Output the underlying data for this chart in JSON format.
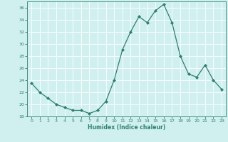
{
  "x": [
    0,
    1,
    2,
    3,
    4,
    5,
    6,
    7,
    8,
    9,
    10,
    11,
    12,
    13,
    14,
    15,
    16,
    17,
    18,
    19,
    20,
    21,
    22,
    23
  ],
  "y": [
    23.5,
    22,
    21,
    20,
    19.5,
    19,
    19,
    18.5,
    19,
    20.5,
    24,
    29,
    32,
    34.5,
    33.5,
    35.5,
    36.5,
    33.5,
    28,
    25,
    24.5,
    26.5,
    24,
    22.5
  ],
  "line_color": "#2d7f6e",
  "marker": "D",
  "marker_size": 2.0,
  "bg_color": "#d0f0f0",
  "grid_color": "#ffffff",
  "xlabel": "Humidex (Indice chaleur)",
  "ylim": [
    18,
    37
  ],
  "xlim": [
    -0.5,
    23.5
  ],
  "yticks": [
    18,
    20,
    22,
    24,
    26,
    28,
    30,
    32,
    34,
    36
  ],
  "xticks": [
    0,
    1,
    2,
    3,
    4,
    5,
    6,
    7,
    8,
    9,
    10,
    11,
    12,
    13,
    14,
    15,
    16,
    17,
    18,
    19,
    20,
    21,
    22,
    23
  ]
}
